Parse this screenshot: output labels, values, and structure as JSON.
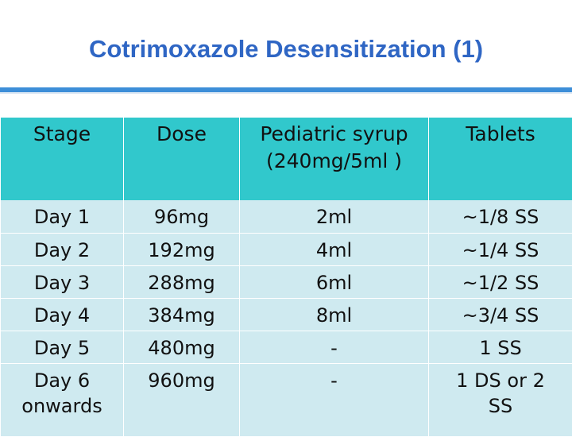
{
  "title": "Cotrimoxazole Desensitization (1)",
  "table": {
    "headers": [
      "Stage",
      "Dose",
      "Pediatric syrup (240mg/5ml )",
      "Tablets"
    ],
    "rows": [
      [
        "Day 1",
        "96mg",
        "2ml",
        "~1/8 SS"
      ],
      [
        "Day 2",
        "192mg",
        "4ml",
        "~1/4 SS"
      ],
      [
        "Day 3",
        "288mg",
        "6ml",
        "~1/2 SS"
      ],
      [
        "Day 4",
        "384mg",
        "8ml",
        "~3/4 SS"
      ],
      [
        "Day 5",
        "480mg",
        "-",
        "1 SS"
      ],
      [
        "Day 6 onwards",
        "960mg",
        "-",
        "1 DS or 2 SS"
      ]
    ]
  },
  "colors": {
    "title": "#2f66c4",
    "rule": "#3d8ed8",
    "header_bg": "#31c8cc",
    "row_bg": "#cfeaf0"
  }
}
